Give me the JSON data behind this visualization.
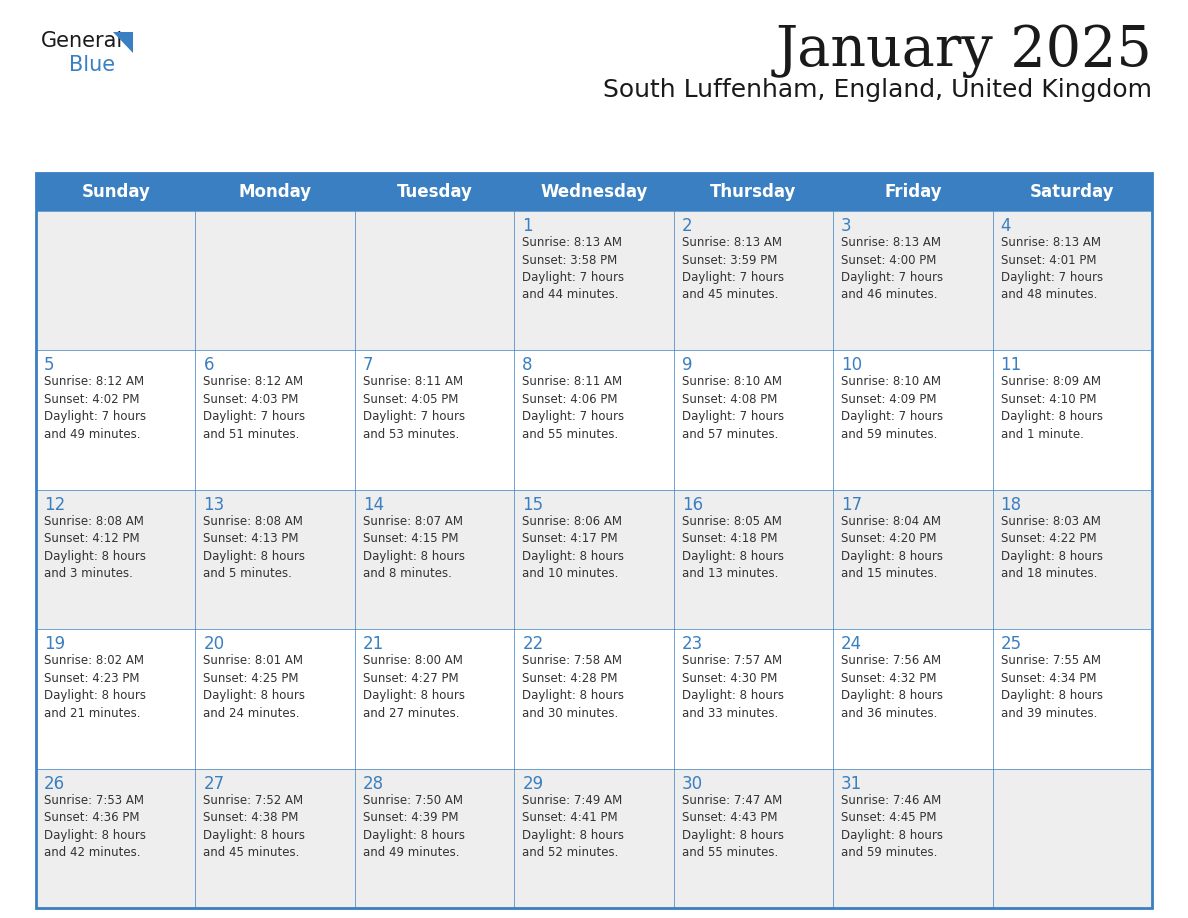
{
  "title": "January 2025",
  "subtitle": "South Luffenham, England, United Kingdom",
  "days_of_week": [
    "Sunday",
    "Monday",
    "Tuesday",
    "Wednesday",
    "Thursday",
    "Friday",
    "Saturday"
  ],
  "header_bg": "#3a7fc1",
  "header_text": "#FFFFFF",
  "cell_bg_odd": "#eeeeee",
  "cell_bg_even": "#ffffff",
  "row_divider_color": "#3a7fc1",
  "day_number_color": "#3a7fc1",
  "text_color": "#333333",
  "title_color": "#1a1a1a",
  "logo_general_color": "#1a1a1a",
  "logo_blue_color": "#3a7fc1",
  "logo_triangle_color": "#3a7fc1",
  "calendar_data": [
    [
      {
        "day": null,
        "info": null
      },
      {
        "day": null,
        "info": null
      },
      {
        "day": null,
        "info": null
      },
      {
        "day": 1,
        "info": "Sunrise: 8:13 AM\nSunset: 3:58 PM\nDaylight: 7 hours\nand 44 minutes."
      },
      {
        "day": 2,
        "info": "Sunrise: 8:13 AM\nSunset: 3:59 PM\nDaylight: 7 hours\nand 45 minutes."
      },
      {
        "day": 3,
        "info": "Sunrise: 8:13 AM\nSunset: 4:00 PM\nDaylight: 7 hours\nand 46 minutes."
      },
      {
        "day": 4,
        "info": "Sunrise: 8:13 AM\nSunset: 4:01 PM\nDaylight: 7 hours\nand 48 minutes."
      }
    ],
    [
      {
        "day": 5,
        "info": "Sunrise: 8:12 AM\nSunset: 4:02 PM\nDaylight: 7 hours\nand 49 minutes."
      },
      {
        "day": 6,
        "info": "Sunrise: 8:12 AM\nSunset: 4:03 PM\nDaylight: 7 hours\nand 51 minutes."
      },
      {
        "day": 7,
        "info": "Sunrise: 8:11 AM\nSunset: 4:05 PM\nDaylight: 7 hours\nand 53 minutes."
      },
      {
        "day": 8,
        "info": "Sunrise: 8:11 AM\nSunset: 4:06 PM\nDaylight: 7 hours\nand 55 minutes."
      },
      {
        "day": 9,
        "info": "Sunrise: 8:10 AM\nSunset: 4:08 PM\nDaylight: 7 hours\nand 57 minutes."
      },
      {
        "day": 10,
        "info": "Sunrise: 8:10 AM\nSunset: 4:09 PM\nDaylight: 7 hours\nand 59 minutes."
      },
      {
        "day": 11,
        "info": "Sunrise: 8:09 AM\nSunset: 4:10 PM\nDaylight: 8 hours\nand 1 minute."
      }
    ],
    [
      {
        "day": 12,
        "info": "Sunrise: 8:08 AM\nSunset: 4:12 PM\nDaylight: 8 hours\nand 3 minutes."
      },
      {
        "day": 13,
        "info": "Sunrise: 8:08 AM\nSunset: 4:13 PM\nDaylight: 8 hours\nand 5 minutes."
      },
      {
        "day": 14,
        "info": "Sunrise: 8:07 AM\nSunset: 4:15 PM\nDaylight: 8 hours\nand 8 minutes."
      },
      {
        "day": 15,
        "info": "Sunrise: 8:06 AM\nSunset: 4:17 PM\nDaylight: 8 hours\nand 10 minutes."
      },
      {
        "day": 16,
        "info": "Sunrise: 8:05 AM\nSunset: 4:18 PM\nDaylight: 8 hours\nand 13 minutes."
      },
      {
        "day": 17,
        "info": "Sunrise: 8:04 AM\nSunset: 4:20 PM\nDaylight: 8 hours\nand 15 minutes."
      },
      {
        "day": 18,
        "info": "Sunrise: 8:03 AM\nSunset: 4:22 PM\nDaylight: 8 hours\nand 18 minutes."
      }
    ],
    [
      {
        "day": 19,
        "info": "Sunrise: 8:02 AM\nSunset: 4:23 PM\nDaylight: 8 hours\nand 21 minutes."
      },
      {
        "day": 20,
        "info": "Sunrise: 8:01 AM\nSunset: 4:25 PM\nDaylight: 8 hours\nand 24 minutes."
      },
      {
        "day": 21,
        "info": "Sunrise: 8:00 AM\nSunset: 4:27 PM\nDaylight: 8 hours\nand 27 minutes."
      },
      {
        "day": 22,
        "info": "Sunrise: 7:58 AM\nSunset: 4:28 PM\nDaylight: 8 hours\nand 30 minutes."
      },
      {
        "day": 23,
        "info": "Sunrise: 7:57 AM\nSunset: 4:30 PM\nDaylight: 8 hours\nand 33 minutes."
      },
      {
        "day": 24,
        "info": "Sunrise: 7:56 AM\nSunset: 4:32 PM\nDaylight: 8 hours\nand 36 minutes."
      },
      {
        "day": 25,
        "info": "Sunrise: 7:55 AM\nSunset: 4:34 PM\nDaylight: 8 hours\nand 39 minutes."
      }
    ],
    [
      {
        "day": 26,
        "info": "Sunrise: 7:53 AM\nSunset: 4:36 PM\nDaylight: 8 hours\nand 42 minutes."
      },
      {
        "day": 27,
        "info": "Sunrise: 7:52 AM\nSunset: 4:38 PM\nDaylight: 8 hours\nand 45 minutes."
      },
      {
        "day": 28,
        "info": "Sunrise: 7:50 AM\nSunset: 4:39 PM\nDaylight: 8 hours\nand 49 minutes."
      },
      {
        "day": 29,
        "info": "Sunrise: 7:49 AM\nSunset: 4:41 PM\nDaylight: 8 hours\nand 52 minutes."
      },
      {
        "day": 30,
        "info": "Sunrise: 7:47 AM\nSunset: 4:43 PM\nDaylight: 8 hours\nand 55 minutes."
      },
      {
        "day": 31,
        "info": "Sunrise: 7:46 AM\nSunset: 4:45 PM\nDaylight: 8 hours\nand 59 minutes."
      },
      {
        "day": null,
        "info": null
      }
    ]
  ]
}
